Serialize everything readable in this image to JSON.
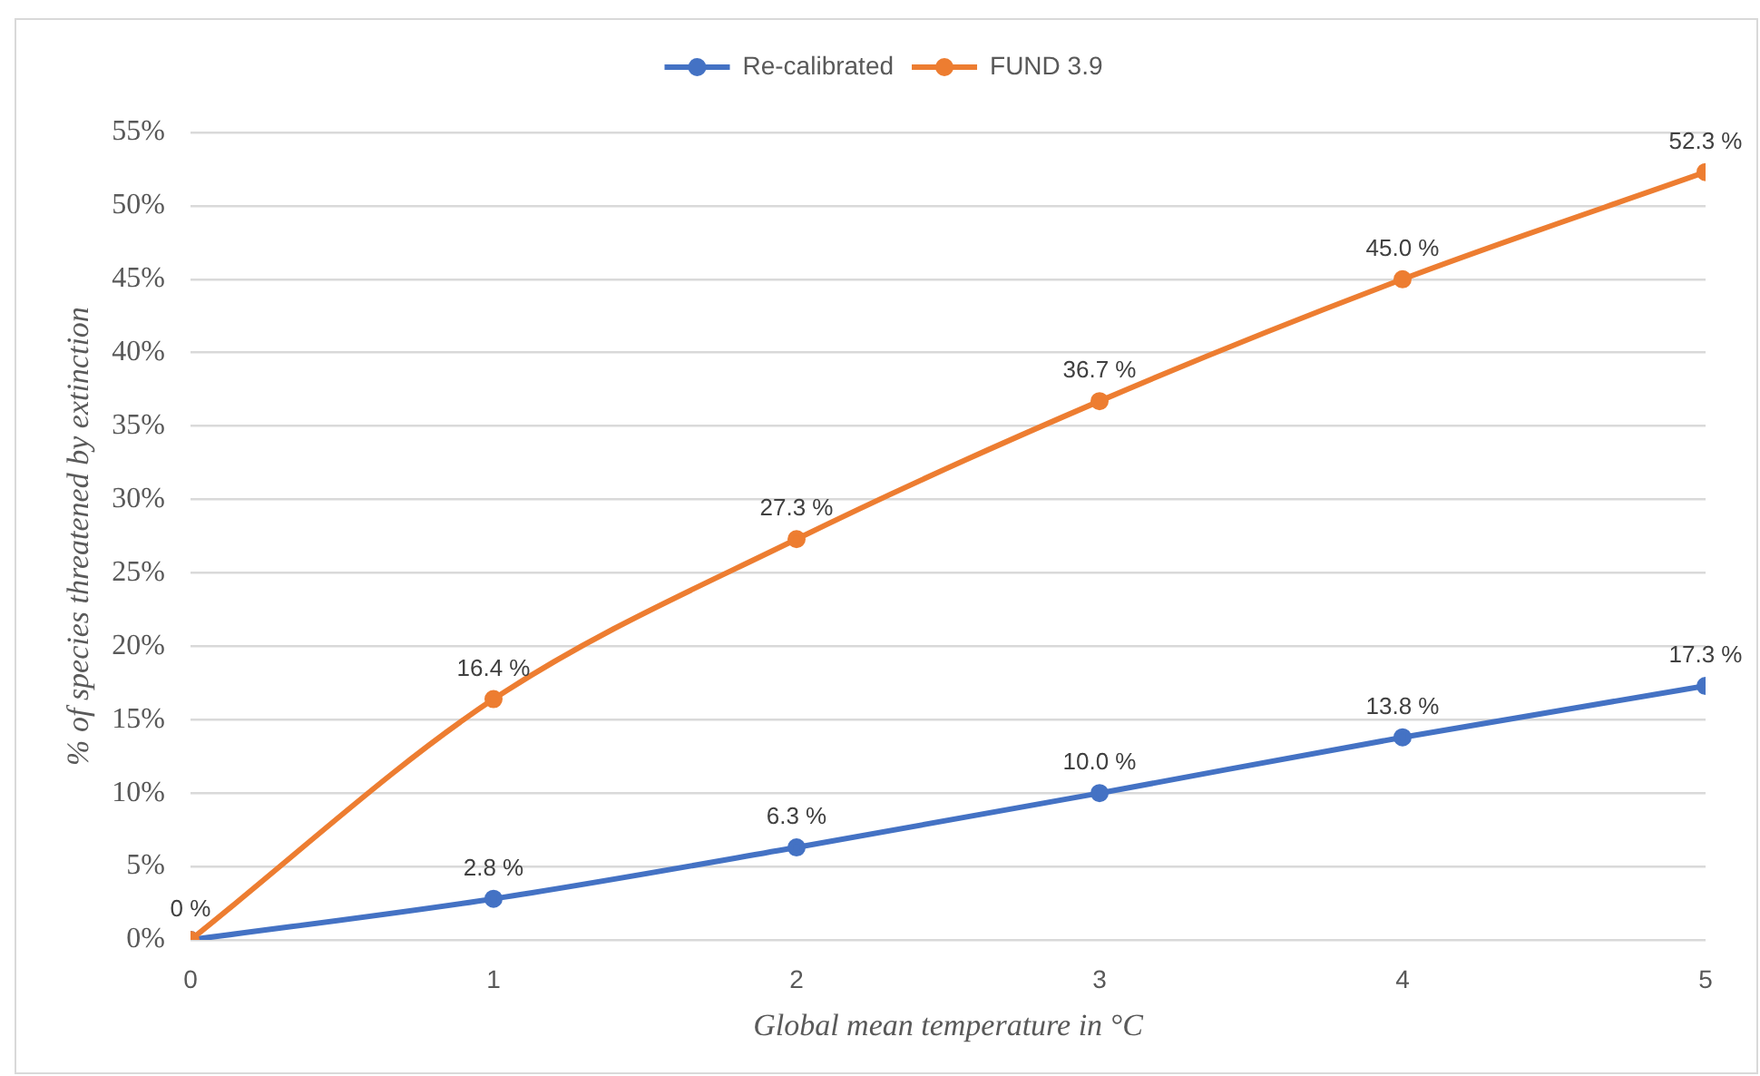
{
  "chart_data": {
    "type": "line",
    "xlabel": "Global mean temperature in °C",
    "ylabel": "% of species threatened by extinction",
    "x": [
      0,
      1,
      2,
      3,
      4,
      5
    ],
    "xlim": [
      0,
      5
    ],
    "xticks": [
      0,
      1,
      2,
      3,
      4,
      5
    ],
    "ylim": [
      0,
      55
    ],
    "yticks": [
      {
        "value": 0,
        "label": "0%"
      },
      {
        "value": 5,
        "label": "5%"
      },
      {
        "value": 10,
        "label": "10%"
      },
      {
        "value": 15,
        "label": "15%"
      },
      {
        "value": 20,
        "label": "20%"
      },
      {
        "value": 25,
        "label": "25%"
      },
      {
        "value": 30,
        "label": "30%"
      },
      {
        "value": 35,
        "label": "35%"
      },
      {
        "value": 40,
        "label": "40%"
      },
      {
        "value": 45,
        "label": "45%"
      },
      {
        "value": 50,
        "label": "50%"
      },
      {
        "value": 55,
        "label": "55%"
      }
    ],
    "grid": "y",
    "legend": "top",
    "marker": "circle",
    "line_style": "solid",
    "series": [
      {
        "name": "Re-calibrated",
        "color": "#4472c4",
        "values": [
          0,
          2.8,
          6.3,
          10.0,
          13.8,
          17.3
        ],
        "value_labels": [
          null,
          "2.8 %",
          "6.3 %",
          "10.0 %",
          "13.8 %",
          "17.3 %"
        ]
      },
      {
        "name": "FUND 3.9",
        "color": "#ed7d31",
        "values": [
          0,
          16.4,
          27.3,
          36.7,
          45.0,
          52.3
        ],
        "value_labels": [
          "0 %",
          "16.4 %",
          "27.3 %",
          "36.7 %",
          "45.0 %",
          "52.3 %"
        ]
      }
    ]
  }
}
